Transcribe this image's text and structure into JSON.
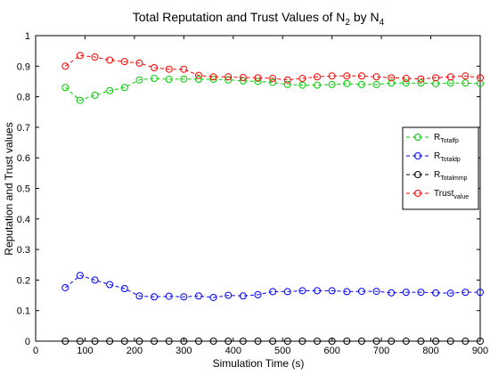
{
  "chart_data": {
    "type": "line",
    "title": {
      "main": "Total Reputation and Trust Values of N",
      "sub_a": "2",
      "mid": " by N",
      "sub_b": "4"
    },
    "xlabel": "Simulation Time (s)",
    "ylabel": "Reputation and Trust values",
    "xlim": [
      0,
      900
    ],
    "ylim": [
      0,
      1
    ],
    "xticks": [
      0,
      100,
      200,
      300,
      400,
      500,
      600,
      700,
      800,
      900
    ],
    "yticks": [
      0,
      0.1,
      0.2,
      0.3,
      0.4,
      0.5,
      0.6,
      0.7,
      0.8,
      0.9,
      1
    ],
    "grid": false,
    "legend_position": "right",
    "x": [
      60,
      90,
      120,
      150,
      180,
      210,
      240,
      270,
      300,
      330,
      360,
      390,
      420,
      450,
      480,
      510,
      540,
      570,
      600,
      630,
      660,
      690,
      720,
      750,
      780,
      810,
      840,
      870,
      900
    ],
    "series": [
      {
        "key": "fp",
        "name_main": "R",
        "name_sub": "Totalfp",
        "color": "#00cc00",
        "values": [
          0.83,
          0.788,
          0.805,
          0.82,
          0.83,
          0.855,
          0.86,
          0.857,
          0.858,
          0.857,
          0.857,
          0.855,
          0.852,
          0.85,
          0.847,
          0.84,
          0.838,
          0.838,
          0.84,
          0.843,
          0.84,
          0.84,
          0.845,
          0.845,
          0.845,
          0.843,
          0.845,
          0.845,
          0.843
        ]
      },
      {
        "key": "dp",
        "name_main": "R",
        "name_sub": "Totaldp",
        "color": "#0000ff",
        "values": [
          0.175,
          0.215,
          0.2,
          0.185,
          0.172,
          0.148,
          0.145,
          0.147,
          0.145,
          0.148,
          0.143,
          0.15,
          0.148,
          0.152,
          0.162,
          0.162,
          0.165,
          0.165,
          0.165,
          0.162,
          0.163,
          0.163,
          0.158,
          0.16,
          0.16,
          0.158,
          0.157,
          0.16,
          0.16
        ]
      },
      {
        "key": "mp",
        "name_main": "R",
        "name_sub": "Totalmmp",
        "color": "#000000",
        "values": [
          0,
          0,
          0,
          0,
          0,
          0,
          0,
          0,
          0,
          0,
          0,
          0,
          0,
          0,
          0,
          0,
          0,
          0,
          0,
          0,
          0,
          0,
          0,
          0,
          0,
          0,
          0,
          0,
          0
        ]
      },
      {
        "key": "trust",
        "name_main": "Trust",
        "name_sub": "value",
        "color": "#ff0000",
        "values": [
          0.9,
          0.935,
          0.93,
          0.92,
          0.915,
          0.91,
          0.895,
          0.89,
          0.89,
          0.87,
          0.865,
          0.865,
          0.863,
          0.862,
          0.86,
          0.855,
          0.86,
          0.865,
          0.868,
          0.868,
          0.868,
          0.865,
          0.862,
          0.86,
          0.858,
          0.862,
          0.865,
          0.868,
          0.862
        ]
      }
    ]
  }
}
